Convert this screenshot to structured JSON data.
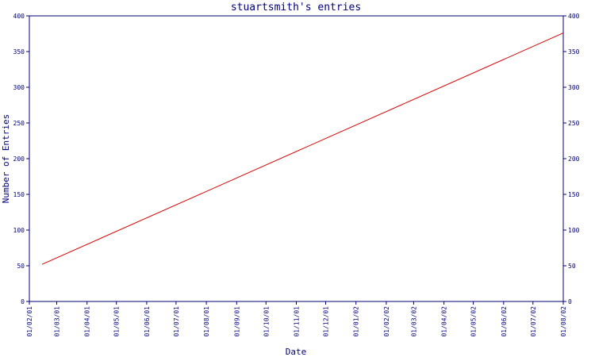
{
  "chart_data": {
    "type": "line",
    "title": "stuartsmith's entries",
    "xlabel": "Date",
    "ylabel": "Number of Entries",
    "ylim": [
      0,
      400
    ],
    "yticks": [
      0,
      50,
      100,
      150,
      200,
      250,
      300,
      350,
      400
    ],
    "y_axis_both_sides": true,
    "grid": false,
    "xticks": [
      "01/02/01",
      "01/03/01",
      "01/04/01",
      "01/05/01",
      "01/06/01",
      "01/07/01",
      "01/08/01",
      "01/09/01",
      "01/10/01",
      "01/11/01",
      "01/12/01",
      "01/01/02",
      "01/02/02",
      "01/03/02",
      "01/04/02",
      "01/05/02",
      "01/06/02",
      "01/07/02",
      "01/08/02"
    ],
    "series": [
      {
        "color": "#dd0000",
        "x": [
          "14/02/01",
          "01/08/02"
        ],
        "y": [
          52,
          376
        ]
      }
    ]
  },
  "colors": {
    "axis": "#00007a",
    "series": "#dd0000",
    "background": "#ffffff"
  }
}
